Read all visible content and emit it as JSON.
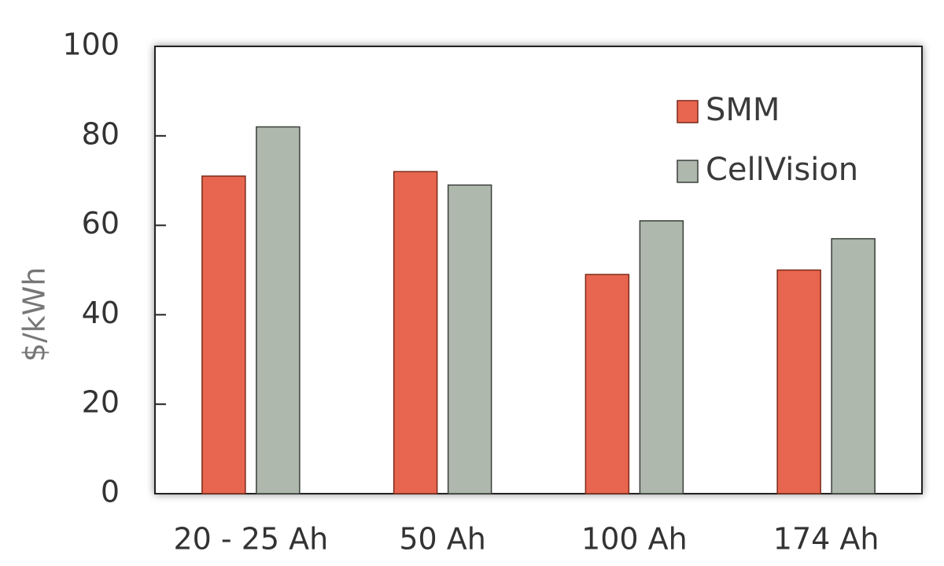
{
  "chart_data": {
    "type": "bar",
    "y_label": "$/kWh",
    "categories": [
      "20 - 25 Ah",
      "50 Ah",
      "100 Ah",
      "174 Ah"
    ],
    "series": [
      {
        "name": "SMM",
        "color": "#e8664f",
        "values": [
          71,
          72,
          49,
          50
        ]
      },
      {
        "name": "CellVision",
        "color": "#aeb8ad",
        "values": [
          82,
          69,
          61,
          57
        ]
      }
    ],
    "ylim": [
      0,
      100
    ],
    "yticks": [
      0,
      20,
      40,
      60,
      80,
      100
    ],
    "legend": "upper-right"
  }
}
